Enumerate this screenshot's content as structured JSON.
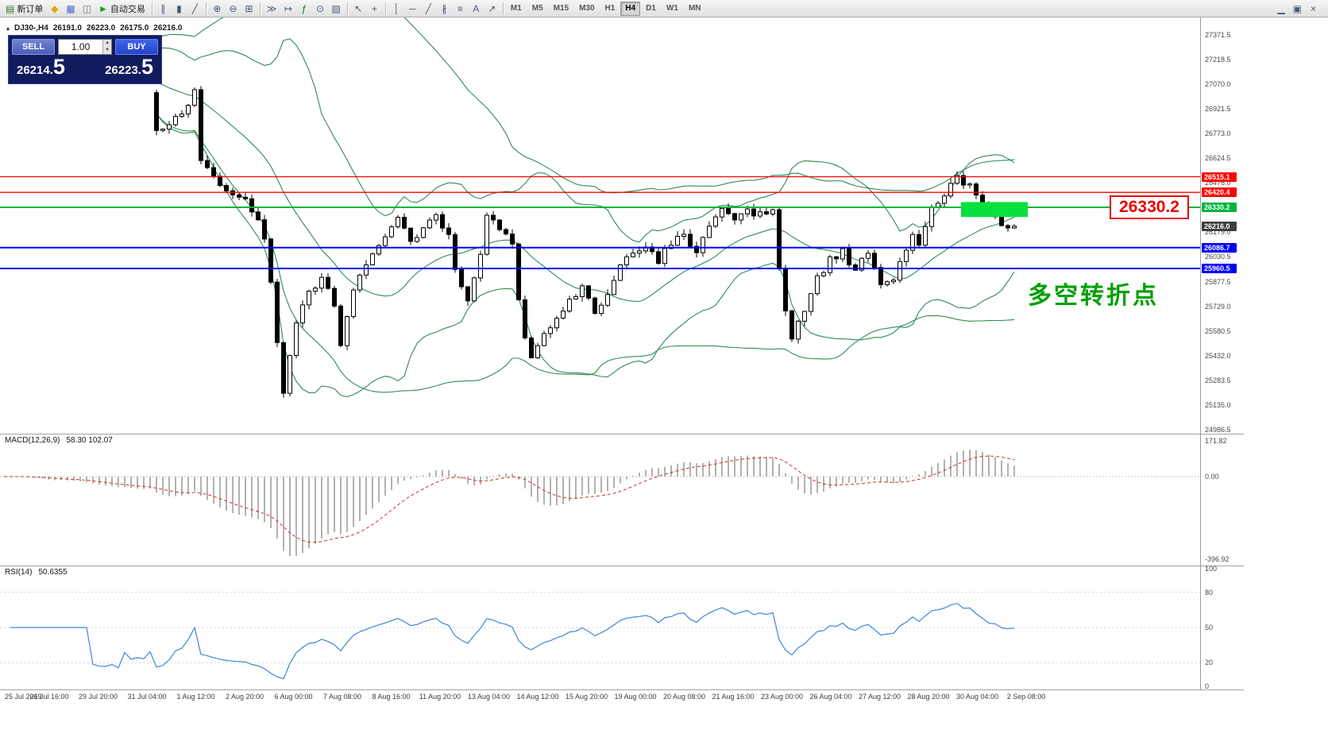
{
  "toolbar": {
    "buttons": [
      {
        "name": "new-order-button",
        "glyph": "▤",
        "glyph_color": "#2e7d32",
        "label": "新订单"
      },
      {
        "name": "favorites-button",
        "glyph": "◆",
        "glyph_color": "#dca700"
      },
      {
        "name": "market-watch-button",
        "glyph": "▦",
        "glyph_color": "#4a6cd4"
      },
      {
        "name": "strategy-tester-button",
        "glyph": "◫",
        "glyph_color": "#777777"
      },
      {
        "name": "autotrade-button",
        "glyph": "►",
        "glyph_color": "#18a018",
        "label": "自动交易"
      },
      {
        "sep": true
      },
      {
        "name": "bar-chart-button",
        "glyph": "∥"
      },
      {
        "name": "candle-chart-button",
        "glyph": "▮"
      },
      {
        "name": "line-chart-button",
        "glyph": "╱"
      },
      {
        "sep": true
      },
      {
        "name": "zoom-in-button",
        "glyph": "⊕"
      },
      {
        "name": "zoom-out-button",
        "glyph": "⊖"
      },
      {
        "name": "tile-windows-button",
        "glyph": "⊞"
      },
      {
        "sep": true
      },
      {
        "name": "auto-scroll-button",
        "glyph": "≫"
      },
      {
        "name": "chart-shift-button",
        "glyph": "↦"
      },
      {
        "name": "indicators-button",
        "glyph": "ƒ",
        "glyph_color": "#0a7a0a"
      },
      {
        "name": "periods-button",
        "glyph": "⊙"
      },
      {
        "name": "templates-button",
        "glyph": "▧"
      },
      {
        "sep": true
      },
      {
        "name": "cursor-button",
        "glyph": "↖"
      },
      {
        "name": "crosshair-button",
        "glyph": "+"
      },
      {
        "sep": true
      },
      {
        "name": "vertical-line-button",
        "glyph": "│"
      },
      {
        "name": "horizontal-line-button",
        "glyph": "─"
      },
      {
        "name": "trendline-button",
        "glyph": "╱"
      },
      {
        "name": "channel-button",
        "glyph": "∦"
      },
      {
        "name": "fibonacci-button",
        "glyph": "≡"
      },
      {
        "name": "text-button",
        "glyph": "A"
      },
      {
        "name": "arrow-tool-button",
        "glyph": "↗"
      },
      {
        "sep": true
      }
    ],
    "timeframes": [
      "M1",
      "M5",
      "M15",
      "M30",
      "H1",
      "H4",
      "D1",
      "W1",
      "MN"
    ],
    "active_timeframe": "H4",
    "right_buttons": [
      {
        "name": "minimize-chart-button",
        "glyph": "▁"
      },
      {
        "name": "restore-chart-button",
        "glyph": "▣"
      },
      {
        "name": "close-chart-button",
        "glyph": "×"
      }
    ]
  },
  "symbol_header": {
    "toggle_glyph": "▴",
    "symbol": "DJ30-,H4",
    "open": "26191.0",
    "high": "26223.0",
    "low": "26175.0",
    "close": "26216.0"
  },
  "trade_panel": {
    "sell_label": "SELL",
    "buy_label": "BUY",
    "volume": "1.00",
    "spin_up": "▲",
    "spin_down": "▼",
    "sell_price_main": "26214.",
    "sell_price_big": "5",
    "buy_price_main": "26223.",
    "buy_price_big": "5"
  },
  "macd": {
    "label": "MACD(12,26,9)",
    "values": "58.30 102.07"
  },
  "rsi": {
    "label": "RSI(14)",
    "value": "50.6355"
  },
  "annotations": {
    "price_callout": "26330.2",
    "turning_point": "多空转折点"
  },
  "chart_data": {
    "type": "candlestick",
    "symbol": "DJ30-",
    "timeframe": "H4",
    "ohlc_current": {
      "open": 26191.0,
      "high": 26223.0,
      "low": 26175.0,
      "close": 26216.0
    },
    "price_axis_labels": [
      27371.5,
      27218.5,
      27070.0,
      26921.5,
      26773.0,
      26624.5,
      26476.0,
      26327.5,
      26179.0,
      26030.5,
      25877.5,
      25729.0,
      25580.5,
      25432.0,
      25283.5,
      25135.0,
      24986.5
    ],
    "hlines": [
      {
        "price": 26515.1,
        "color": "#ff0000",
        "width": 1.3
      },
      {
        "price": 26420.4,
        "color": "#ff0000",
        "width": 1.3
      },
      {
        "price": 26330.2,
        "color": "#00b43c",
        "width": 2
      },
      {
        "price": 26086.7,
        "color": "#0000ff",
        "width": 2
      },
      {
        "price": 25960.5,
        "color": "#0000ff",
        "width": 2
      }
    ],
    "price_badges": [
      {
        "value": "26515.1",
        "bg": "#ff0000"
      },
      {
        "value": "26420.4",
        "bg": "#ff0000"
      },
      {
        "value": "26330.2",
        "bg": "#00b43c"
      },
      {
        "value": "26216.0",
        "bg": "#3f3f3f"
      },
      {
        "value": "26086.7",
        "bg": "#0000ff"
      },
      {
        "value": "25960.5",
        "bg": "#0000ff"
      }
    ],
    "highlight_rect": {
      "start": 127,
      "end": 136.8,
      "price_top": 26362,
      "price_bottom": 26272,
      "color": "#0ae040"
    },
    "colors": {
      "band": "#2e8b57",
      "candle_up": "#ffffff",
      "candle_down": "#000000"
    },
    "pre_candle_count": 24,
    "candle_count": 136,
    "pre_close_start": 27290,
    "pre_close_end": 26990,
    "close_anchors": [
      [
        0,
        26780
      ],
      [
        2,
        26850
      ],
      [
        4,
        26880
      ],
      [
        5,
        26960
      ],
      [
        6,
        27040
      ],
      [
        7,
        26600
      ],
      [
        9,
        26500
      ],
      [
        12,
        26420
      ],
      [
        14,
        26360
      ],
      [
        16,
        26270
      ],
      [
        17,
        26150
      ],
      [
        18,
        25900
      ],
      [
        19,
        25500
      ],
      [
        20,
        25190
      ],
      [
        21,
        25420
      ],
      [
        22,
        25650
      ],
      [
        24,
        25820
      ],
      [
        26,
        25900
      ],
      [
        28,
        25740
      ],
      [
        29,
        25480
      ],
      [
        31,
        25850
      ],
      [
        34,
        26060
      ],
      [
        36,
        26160
      ],
      [
        38,
        26260
      ],
      [
        40,
        26120
      ],
      [
        42,
        26210
      ],
      [
        44,
        26290
      ],
      [
        46,
        26160
      ],
      [
        47,
        25960
      ],
      [
        49,
        25780
      ],
      [
        51,
        26060
      ],
      [
        52,
        26270
      ],
      [
        54,
        26210
      ],
      [
        56,
        26090
      ],
      [
        57,
        25790
      ],
      [
        58,
        25520
      ],
      [
        59,
        25440
      ],
      [
        61,
        25560
      ],
      [
        63,
        25660
      ],
      [
        65,
        25760
      ],
      [
        67,
        25860
      ],
      [
        69,
        25710
      ],
      [
        71,
        25810
      ],
      [
        73,
        26000
      ],
      [
        75,
        26060
      ],
      [
        77,
        26110
      ],
      [
        79,
        26010
      ],
      [
        81,
        26110
      ],
      [
        83,
        26160
      ],
      [
        85,
        26060
      ],
      [
        87,
        26210
      ],
      [
        89,
        26310
      ],
      [
        91,
        26260
      ],
      [
        93,
        26310
      ],
      [
        95,
        26290
      ],
      [
        97,
        26310
      ],
      [
        98,
        25950
      ],
      [
        99,
        25690
      ],
      [
        100,
        25540
      ],
      [
        102,
        25700
      ],
      [
        104,
        25900
      ],
      [
        106,
        26010
      ],
      [
        108,
        26060
      ],
      [
        110,
        25950
      ],
      [
        112,
        26060
      ],
      [
        114,
        25860
      ],
      [
        116,
        25910
      ],
      [
        118,
        26060
      ],
      [
        119,
        26160
      ],
      [
        120,
        26110
      ],
      [
        121,
        26210
      ],
      [
        122,
        26310
      ],
      [
        123,
        26360
      ],
      [
        124,
        26410
      ],
      [
        125,
        26460
      ],
      [
        126,
        26505
      ],
      [
        127,
        26480
      ],
      [
        128,
        26450
      ],
      [
        129,
        26400
      ],
      [
        130,
        26340
      ],
      [
        131,
        26300
      ],
      [
        132,
        26280
      ],
      [
        133,
        26240
      ],
      [
        135,
        26216
      ]
    ],
    "bollinger": {
      "period": 20,
      "deviation": 2
    },
    "envelope": {
      "period": 50,
      "deviation": 2.1
    },
    "macd": {
      "fast": 12,
      "slow": 26,
      "signal": 9,
      "axis": [
        171.82,
        0.0,
        -396.92
      ]
    },
    "rsi": {
      "period": 14,
      "axis": [
        100,
        80,
        50,
        20,
        0
      ],
      "levels": [
        80,
        50,
        20
      ]
    },
    "time_labels": [
      "25 Jul 2019",
      "26 Jul 16:00",
      "29 Jul 20:00",
      "31 Jul 04:00",
      "1 Aug 12:00",
      "2 Aug 20:00",
      "6 Aug 00:00",
      "7 Aug 08:00",
      "8 Aug 16:00",
      "11 Aug 20:00",
      "13 Aug 04:00",
      "14 Aug 12:00",
      "15 Aug 20:00",
      "19 Aug 00:00",
      "20 Aug 08:00",
      "21 Aug 16:00",
      "23 Aug 00:00",
      "26 Aug 04:00",
      "27 Aug 12:00",
      "28 Aug 20:00",
      "30 Aug 04:00",
      "2 Sep 08:00"
    ]
  }
}
